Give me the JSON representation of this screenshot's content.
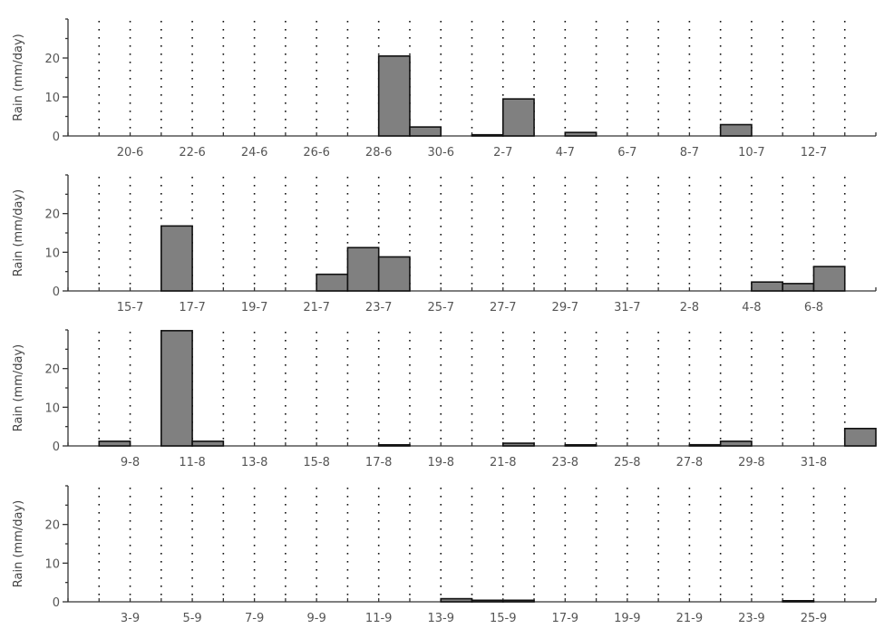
{
  "chart_data": [
    {
      "type": "bar",
      "ylabel": "Rain (mm/day)",
      "ylim": [
        0,
        30
      ],
      "yticks": [
        0,
        10,
        20
      ],
      "grid": "vertical dotted",
      "x_start_date": "2009-06-18",
      "x_end_date": "2009-07-14",
      "xtick_labels": [
        "20-6",
        "22-6",
        "24-6",
        "26-6",
        "28-6",
        "30-6",
        "2-7",
        "4-7",
        "6-7",
        "8-7",
        "10-7",
        "12-7"
      ],
      "series": [
        {
          "x": [
            "2009-06-28",
            "2009-06-29",
            "2009-07-01",
            "2009-07-02",
            "2009-07-04",
            "2009-07-09"
          ],
          "values": [
            20.5,
            2.3,
            0.3,
            9.5,
            0.9,
            2.9
          ]
        }
      ]
    },
    {
      "type": "bar",
      "ylabel": "Rain (mm/day)",
      "ylim": [
        0,
        30
      ],
      "yticks": [
        0,
        10,
        20
      ],
      "grid": "vertical dotted",
      "x_start_date": "2009-07-13",
      "x_end_date": "2009-08-08",
      "xtick_labels": [
        "15-7",
        "17-7",
        "19-7",
        "21-7",
        "23-7",
        "25-7",
        "27-7",
        "29-7",
        "31-7",
        "2-8",
        "4-8",
        "6-8"
      ],
      "series": [
        {
          "x": [
            "2009-07-16",
            "2009-07-21",
            "2009-07-22",
            "2009-07-23",
            "2009-08-04",
            "2009-08-05",
            "2009-08-06"
          ],
          "values": [
            16.8,
            4.3,
            11.2,
            8.8,
            2.3,
            1.9,
            6.3
          ]
        }
      ]
    },
    {
      "type": "bar",
      "ylabel": "Rain (mm/day)",
      "ylim": [
        0,
        30
      ],
      "yticks": [
        0,
        10,
        20
      ],
      "grid": "vertical dotted",
      "x_start_date": "2009-08-07",
      "x_end_date": "2009-09-02",
      "xtick_labels": [
        "9-8",
        "11-8",
        "13-8",
        "15-8",
        "17-8",
        "19-8",
        "21-8",
        "23-8",
        "25-8",
        "27-8",
        "29-8",
        "31-8"
      ],
      "series": [
        {
          "x": [
            "2009-08-08",
            "2009-08-10",
            "2009-08-11",
            "2009-08-17",
            "2009-08-21",
            "2009-08-23",
            "2009-08-27",
            "2009-08-28",
            "2009-09-01"
          ],
          "values": [
            1.2,
            29.8,
            1.2,
            0.1,
            0.7,
            0.1,
            0.3,
            1.2,
            4.5
          ]
        }
      ]
    },
    {
      "type": "bar",
      "ylabel": "Rain (mm/day)",
      "ylim": [
        0,
        30
      ],
      "yticks": [
        0,
        10,
        20
      ],
      "grid": "vertical dotted",
      "x_start_date": "2009-09-01",
      "x_end_date": "2009-09-27",
      "xtick_labels": [
        "3-9",
        "5-9",
        "7-9",
        "9-9",
        "11-9",
        "13-9",
        "15-9",
        "17-9",
        "19-9",
        "21-9",
        "23-9",
        "25-9"
      ],
      "series": [
        {
          "x": [
            "2009-09-13",
            "2009-09-14",
            "2009-09-15",
            "2009-09-24"
          ],
          "values": [
            0.8,
            0.4,
            0.4,
            0.1
          ]
        }
      ]
    }
  ]
}
